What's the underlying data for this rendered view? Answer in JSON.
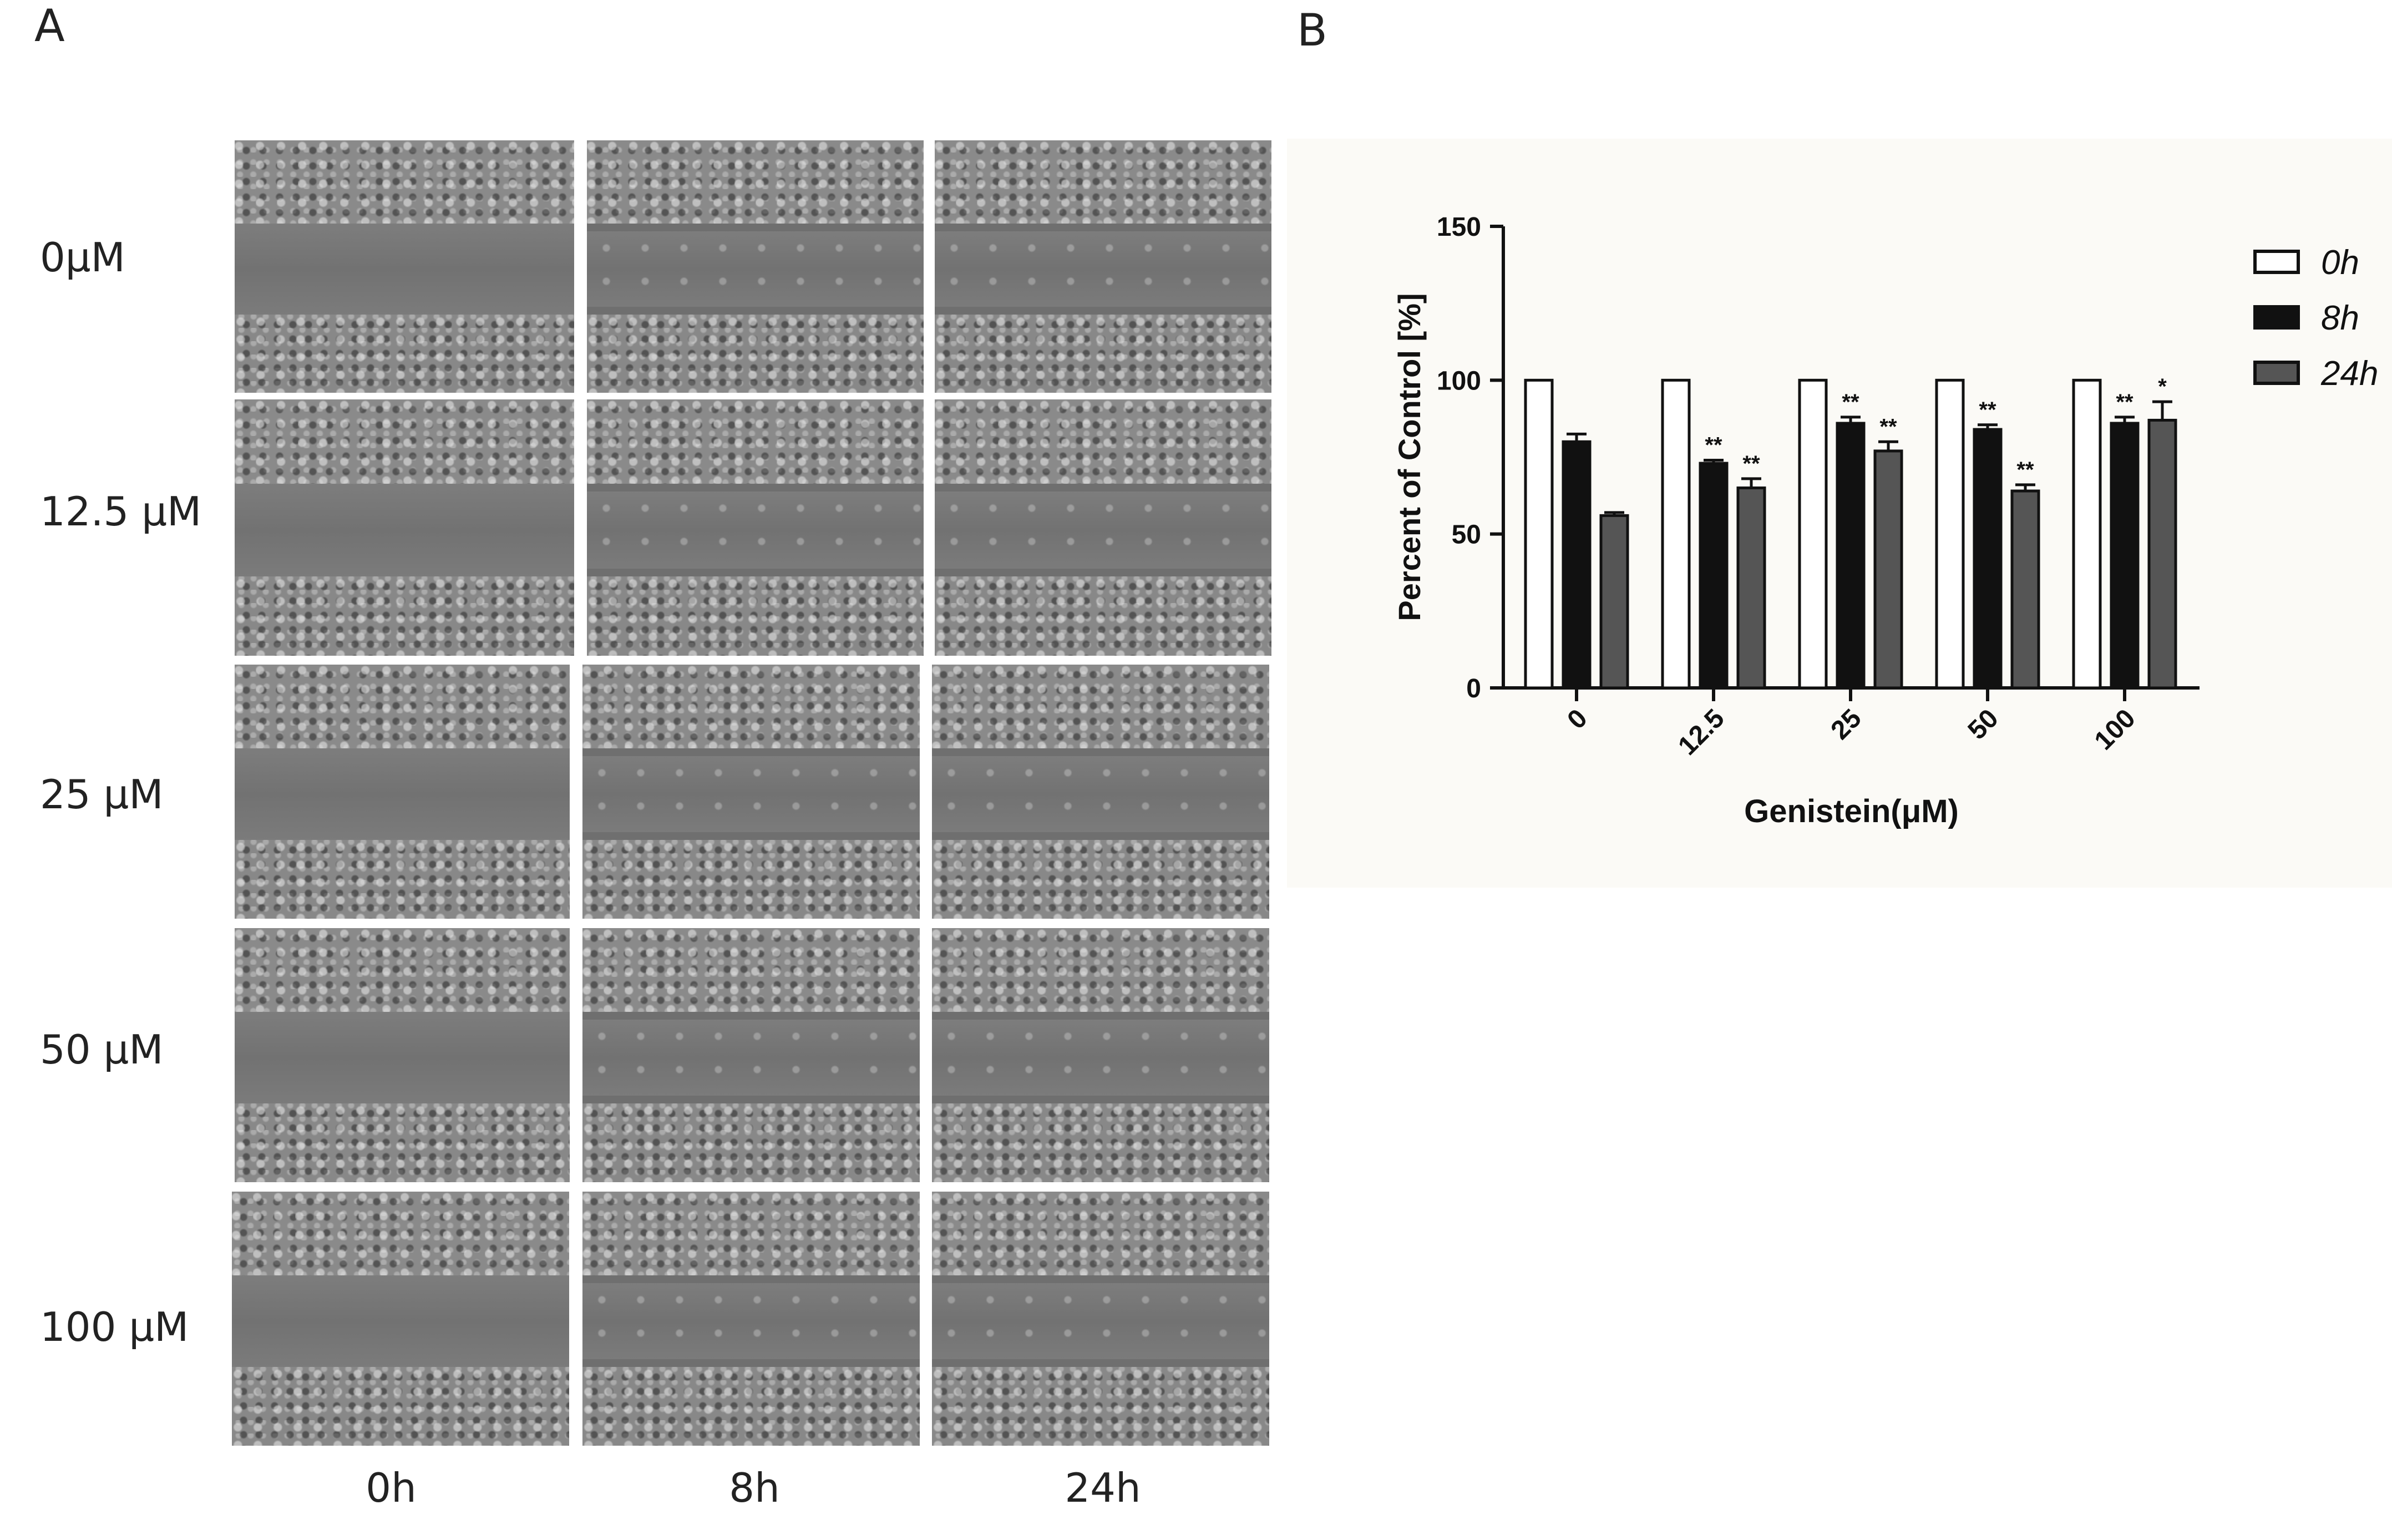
{
  "panels": {
    "a": "A",
    "b": "B"
  },
  "micrographs": {
    "rows": [
      "0μM",
      "12.5 μM",
      "25 μM",
      "50 μM",
      "100 μM"
    ],
    "columns": [
      "0h",
      "8h",
      "24h"
    ]
  },
  "chart_data": {
    "type": "bar",
    "xlabel": "Genistein(μM)",
    "ylabel": "Percent of Control [%]",
    "categories": [
      "0",
      "12.5",
      "25",
      "50",
      "100"
    ],
    "ylim": [
      0,
      150
    ],
    "yticks": [
      0,
      50,
      100,
      150
    ],
    "grid": false,
    "legend_position": "top-right",
    "series": [
      {
        "name": "0h",
        "color": "#ffffff",
        "values": [
          100,
          100,
          100,
          100,
          100
        ],
        "errors": [
          0,
          0,
          0,
          0,
          0
        ],
        "significance": [
          "",
          "",
          "",
          "",
          ""
        ]
      },
      {
        "name": "8h",
        "color": "#111111",
        "values": [
          80,
          73,
          86,
          84,
          86
        ],
        "errors": [
          2.5,
          1,
          2,
          1.5,
          2
        ],
        "significance": [
          "",
          "**",
          "**",
          "**",
          "**"
        ]
      },
      {
        "name": "24h",
        "color": "#555555",
        "values": [
          56,
          65,
          77,
          64,
          87
        ],
        "errors": [
          1,
          3,
          3,
          2,
          6
        ],
        "significance": [
          "",
          "**",
          "**",
          "**",
          "*"
        ]
      }
    ]
  }
}
